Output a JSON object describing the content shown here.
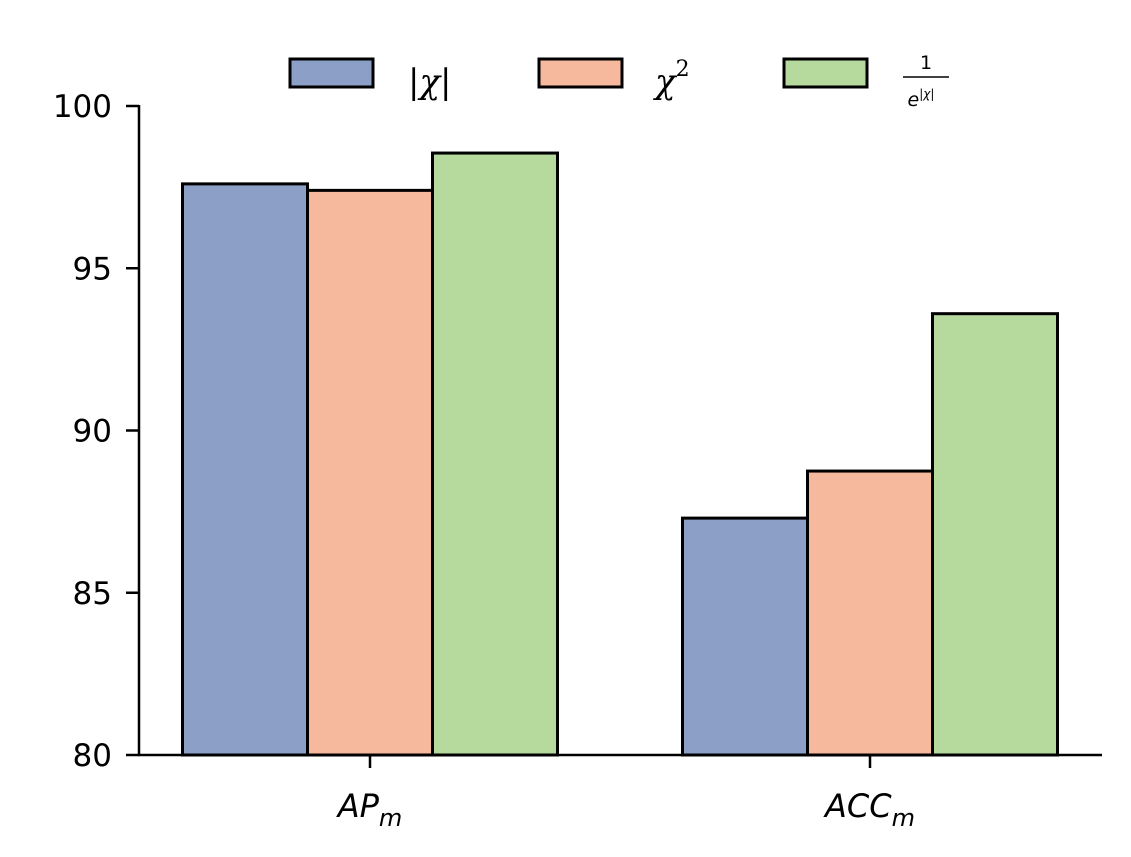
{
  "chart_data": {
    "type": "bar",
    "categories": [
      {
        "base": "AP",
        "sub": "m"
      },
      {
        "base": "ACC",
        "sub": "m"
      }
    ],
    "series": [
      {
        "name": "|χ|",
        "color": "#8c9fc6",
        "values": [
          97.6,
          87.3
        ]
      },
      {
        "name": "χ2",
        "color": "#f6b99e",
        "values": [
          97.4,
          88.75
        ]
      },
      {
        "name": "1/e^|χ|",
        "color": "#b6d99e",
        "values": [
          98.55,
          93.6
        ]
      }
    ],
    "legend_text": {
      "abs_chi": "|χ|",
      "chi_sq_base": "χ",
      "chi_sq_exp": "2",
      "frac_num": "1",
      "frac_den_base": "e",
      "frac_den_exp": "|χ|"
    },
    "yticks": [
      "80",
      "85",
      "90",
      "95",
      "100"
    ],
    "ylim": [
      80,
      100
    ],
    "xlabel": "",
    "ylabel": "",
    "title": "",
    "legend_position": "top-center",
    "grid": false
  }
}
